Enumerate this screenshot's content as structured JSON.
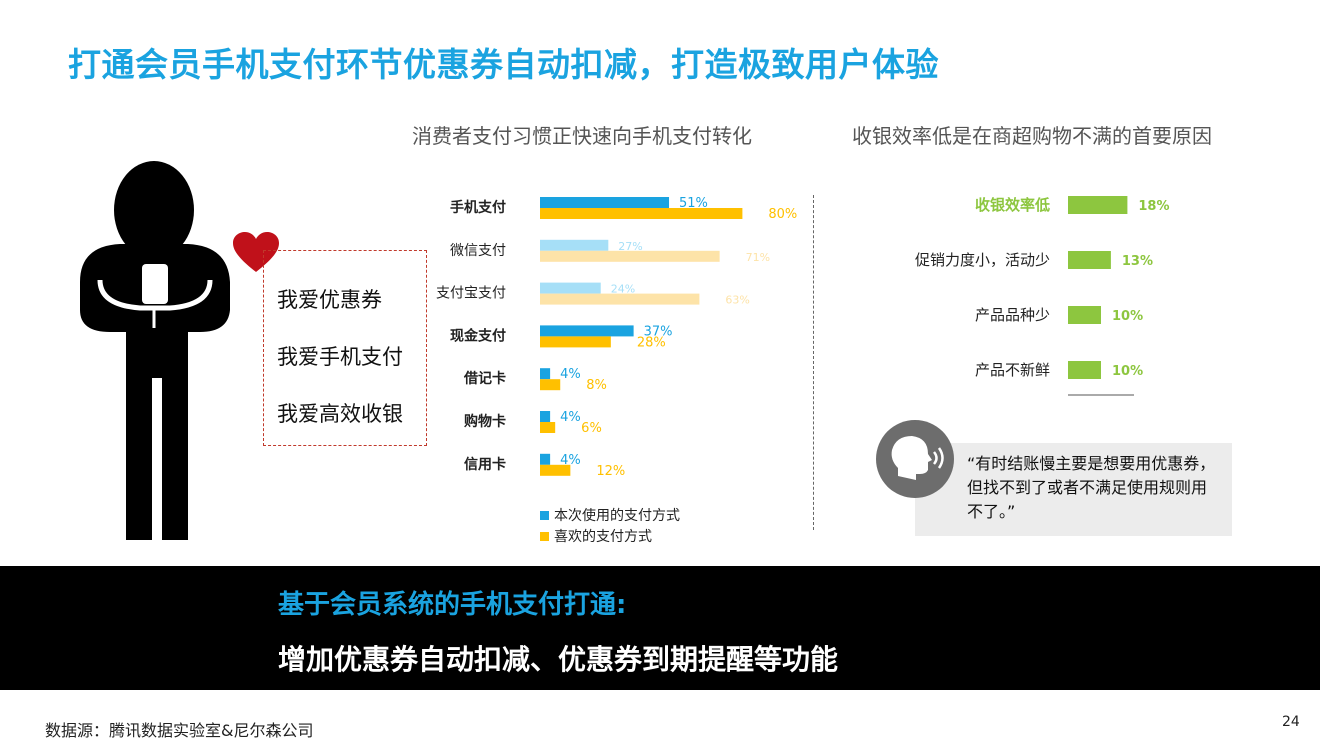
{
  "title": "打通会员手机支付环节优惠券自动扣减，打造极致用户体验",
  "person": {
    "bubbles": [
      "我爱优惠券",
      "我爱手机支付",
      "我爱高效收银"
    ]
  },
  "chart_data": [
    {
      "type": "bar",
      "orientation": "horizontal",
      "title": "消费者支付习惯正快速向手机支付转化",
      "categories": [
        "手机支付",
        "微信支付",
        "支付宝支付",
        "现金支付",
        "借记卡",
        "购物卡",
        "信用卡"
      ],
      "bold_categories": [
        "手机支付",
        "现金支付",
        "借记卡",
        "购物卡",
        "信用卡"
      ],
      "series": [
        {
          "name": "本次使用的支付方式",
          "values": [
            51,
            27,
            24,
            37,
            4,
            4,
            4
          ],
          "color": "#1aa3e0",
          "light_color": "#a6dff7"
        },
        {
          "name": "喜欢的支付方式",
          "values": [
            80,
            71,
            63,
            28,
            8,
            6,
            12
          ],
          "color": "#ffc000",
          "light_color": "#fde3a8"
        }
      ],
      "labels": [
        [
          "51%",
          "27%",
          "24%",
          "37%",
          "4%",
          "4%",
          "4%"
        ],
        [
          "80%",
          "71%",
          "63%",
          "28%",
          "8%",
          "6%",
          "12%"
        ]
      ],
      "light_categories": [
        "微信支付",
        "支付宝支付"
      ],
      "legend_position": "bottom-left"
    },
    {
      "type": "bar",
      "orientation": "horizontal",
      "title": "收银效率低是在商超购物不满的首要原因",
      "categories": [
        "收银效率低",
        "促销力度小，活动少",
        "产品品种少",
        "产品不新鲜"
      ],
      "values": [
        18,
        13,
        10,
        10
      ],
      "labels": [
        "18%",
        "13%",
        "10%",
        "10%"
      ],
      "color": "#8dc63f",
      "highlight_category": "收银效率低"
    }
  ],
  "quote": "“有时结账慢主要是想要用优惠券，但找不到了或者不满足使用规则用不了。”",
  "banner": {
    "line1": "基于会员系统的手机支付打通:",
    "line2": "增加优惠券自动扣减、优惠券到期提醒等功能"
  },
  "source": "数据源：腾讯数据实验室&尼尔森公司",
  "page_number": "24",
  "colors": {
    "accent": "#1aa3e0",
    "heart": "#c0111a",
    "green": "#8dc63f"
  }
}
